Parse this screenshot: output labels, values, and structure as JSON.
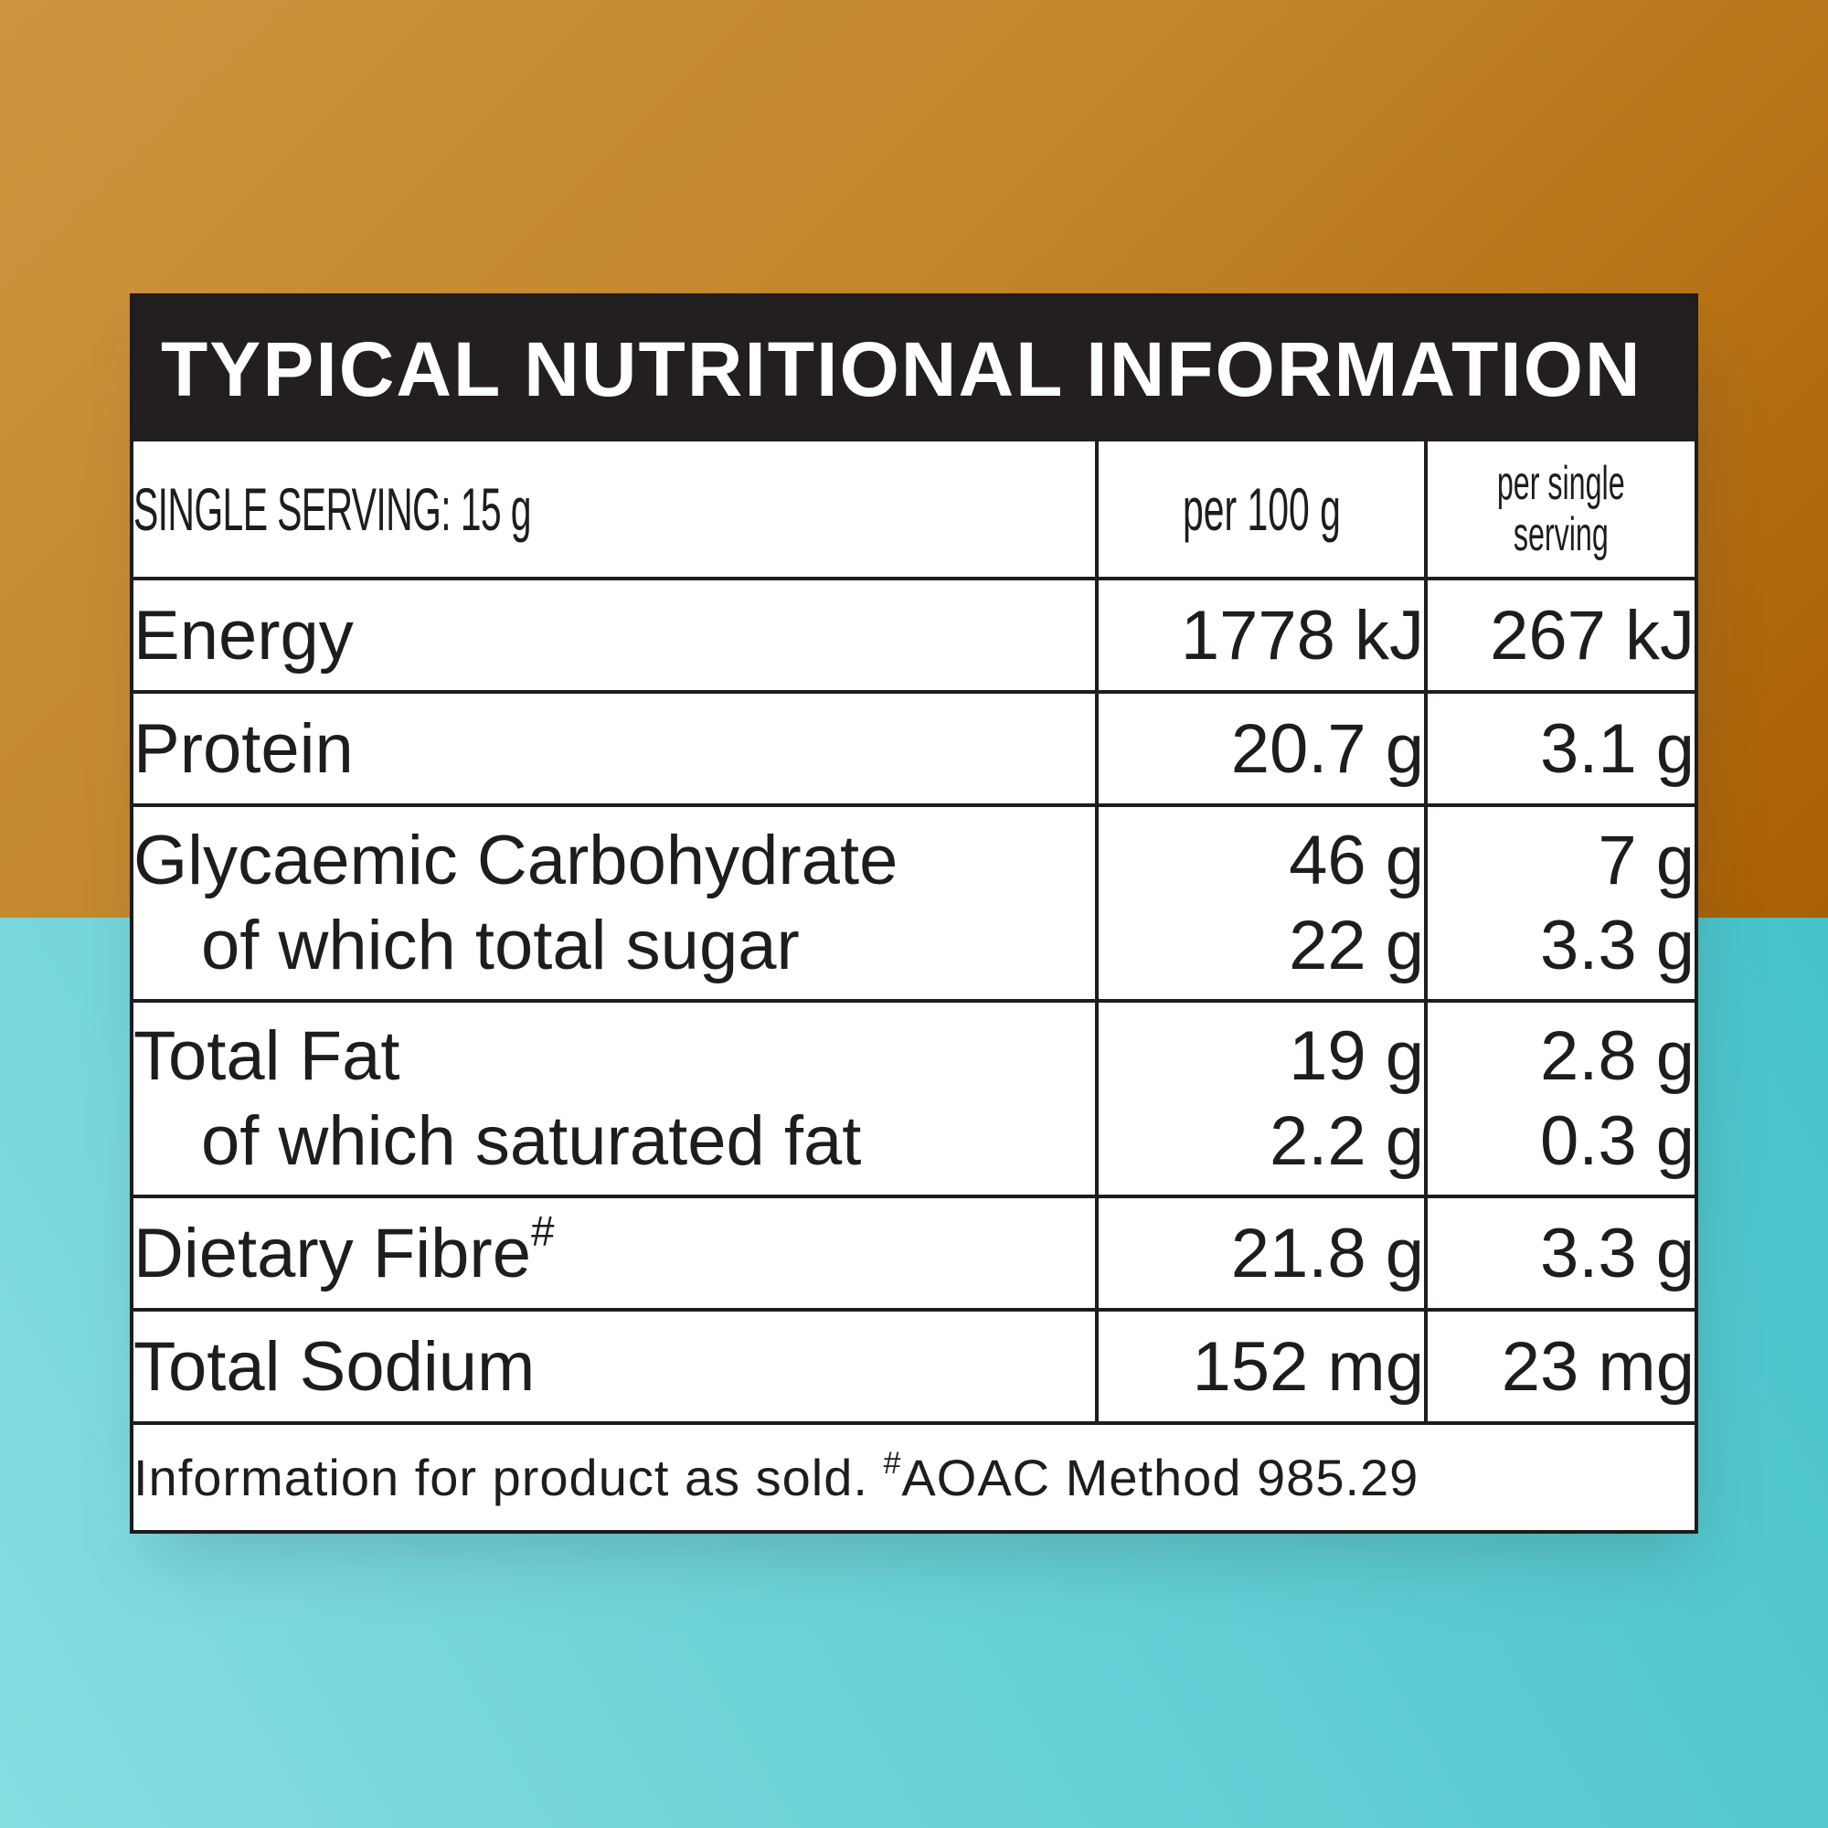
{
  "title": "TYPICAL NUTRITIONAL INFORMATION",
  "header": {
    "serving_label": "SINGLE SERVING: 15 g",
    "col_per100": "per 100 g",
    "col_single_line1": "per single",
    "col_single_line2": "serving"
  },
  "rows": [
    {
      "name": "Energy",
      "per100": "1778 kJ",
      "single": "267 kJ"
    },
    {
      "name": "Protein",
      "per100": "20.7 g",
      "single": "3.1 g"
    },
    {
      "name": "Glycaemic Carbohydrate",
      "per100": "46 g",
      "single": "7 g",
      "sub_name": "of which total sugar",
      "sub_per100": "22 g",
      "sub_single": "3.3 g"
    },
    {
      "name": "Total Fat",
      "per100": "19 g",
      "single": "2.8 g",
      "sub_name": "of which saturated fat",
      "sub_per100": "2.2 g",
      "sub_single": "0.3 g"
    },
    {
      "name": "Dietary Fibre",
      "name_sup": "#",
      "per100": "21.8 g",
      "single": "3.3 g"
    },
    {
      "name": "Total Sodium",
      "per100": "152 mg",
      "single": "23 mg"
    }
  ],
  "footnote": {
    "text_before": "Information for product as sold. ",
    "sup": "#",
    "text_after": "AOAC Method 985.29"
  },
  "colors": {
    "panel_header_bg": "#231f20",
    "border": "#1e1c1d",
    "bg_top": "#c38529",
    "bg_bottom": "#5fcdd3"
  }
}
